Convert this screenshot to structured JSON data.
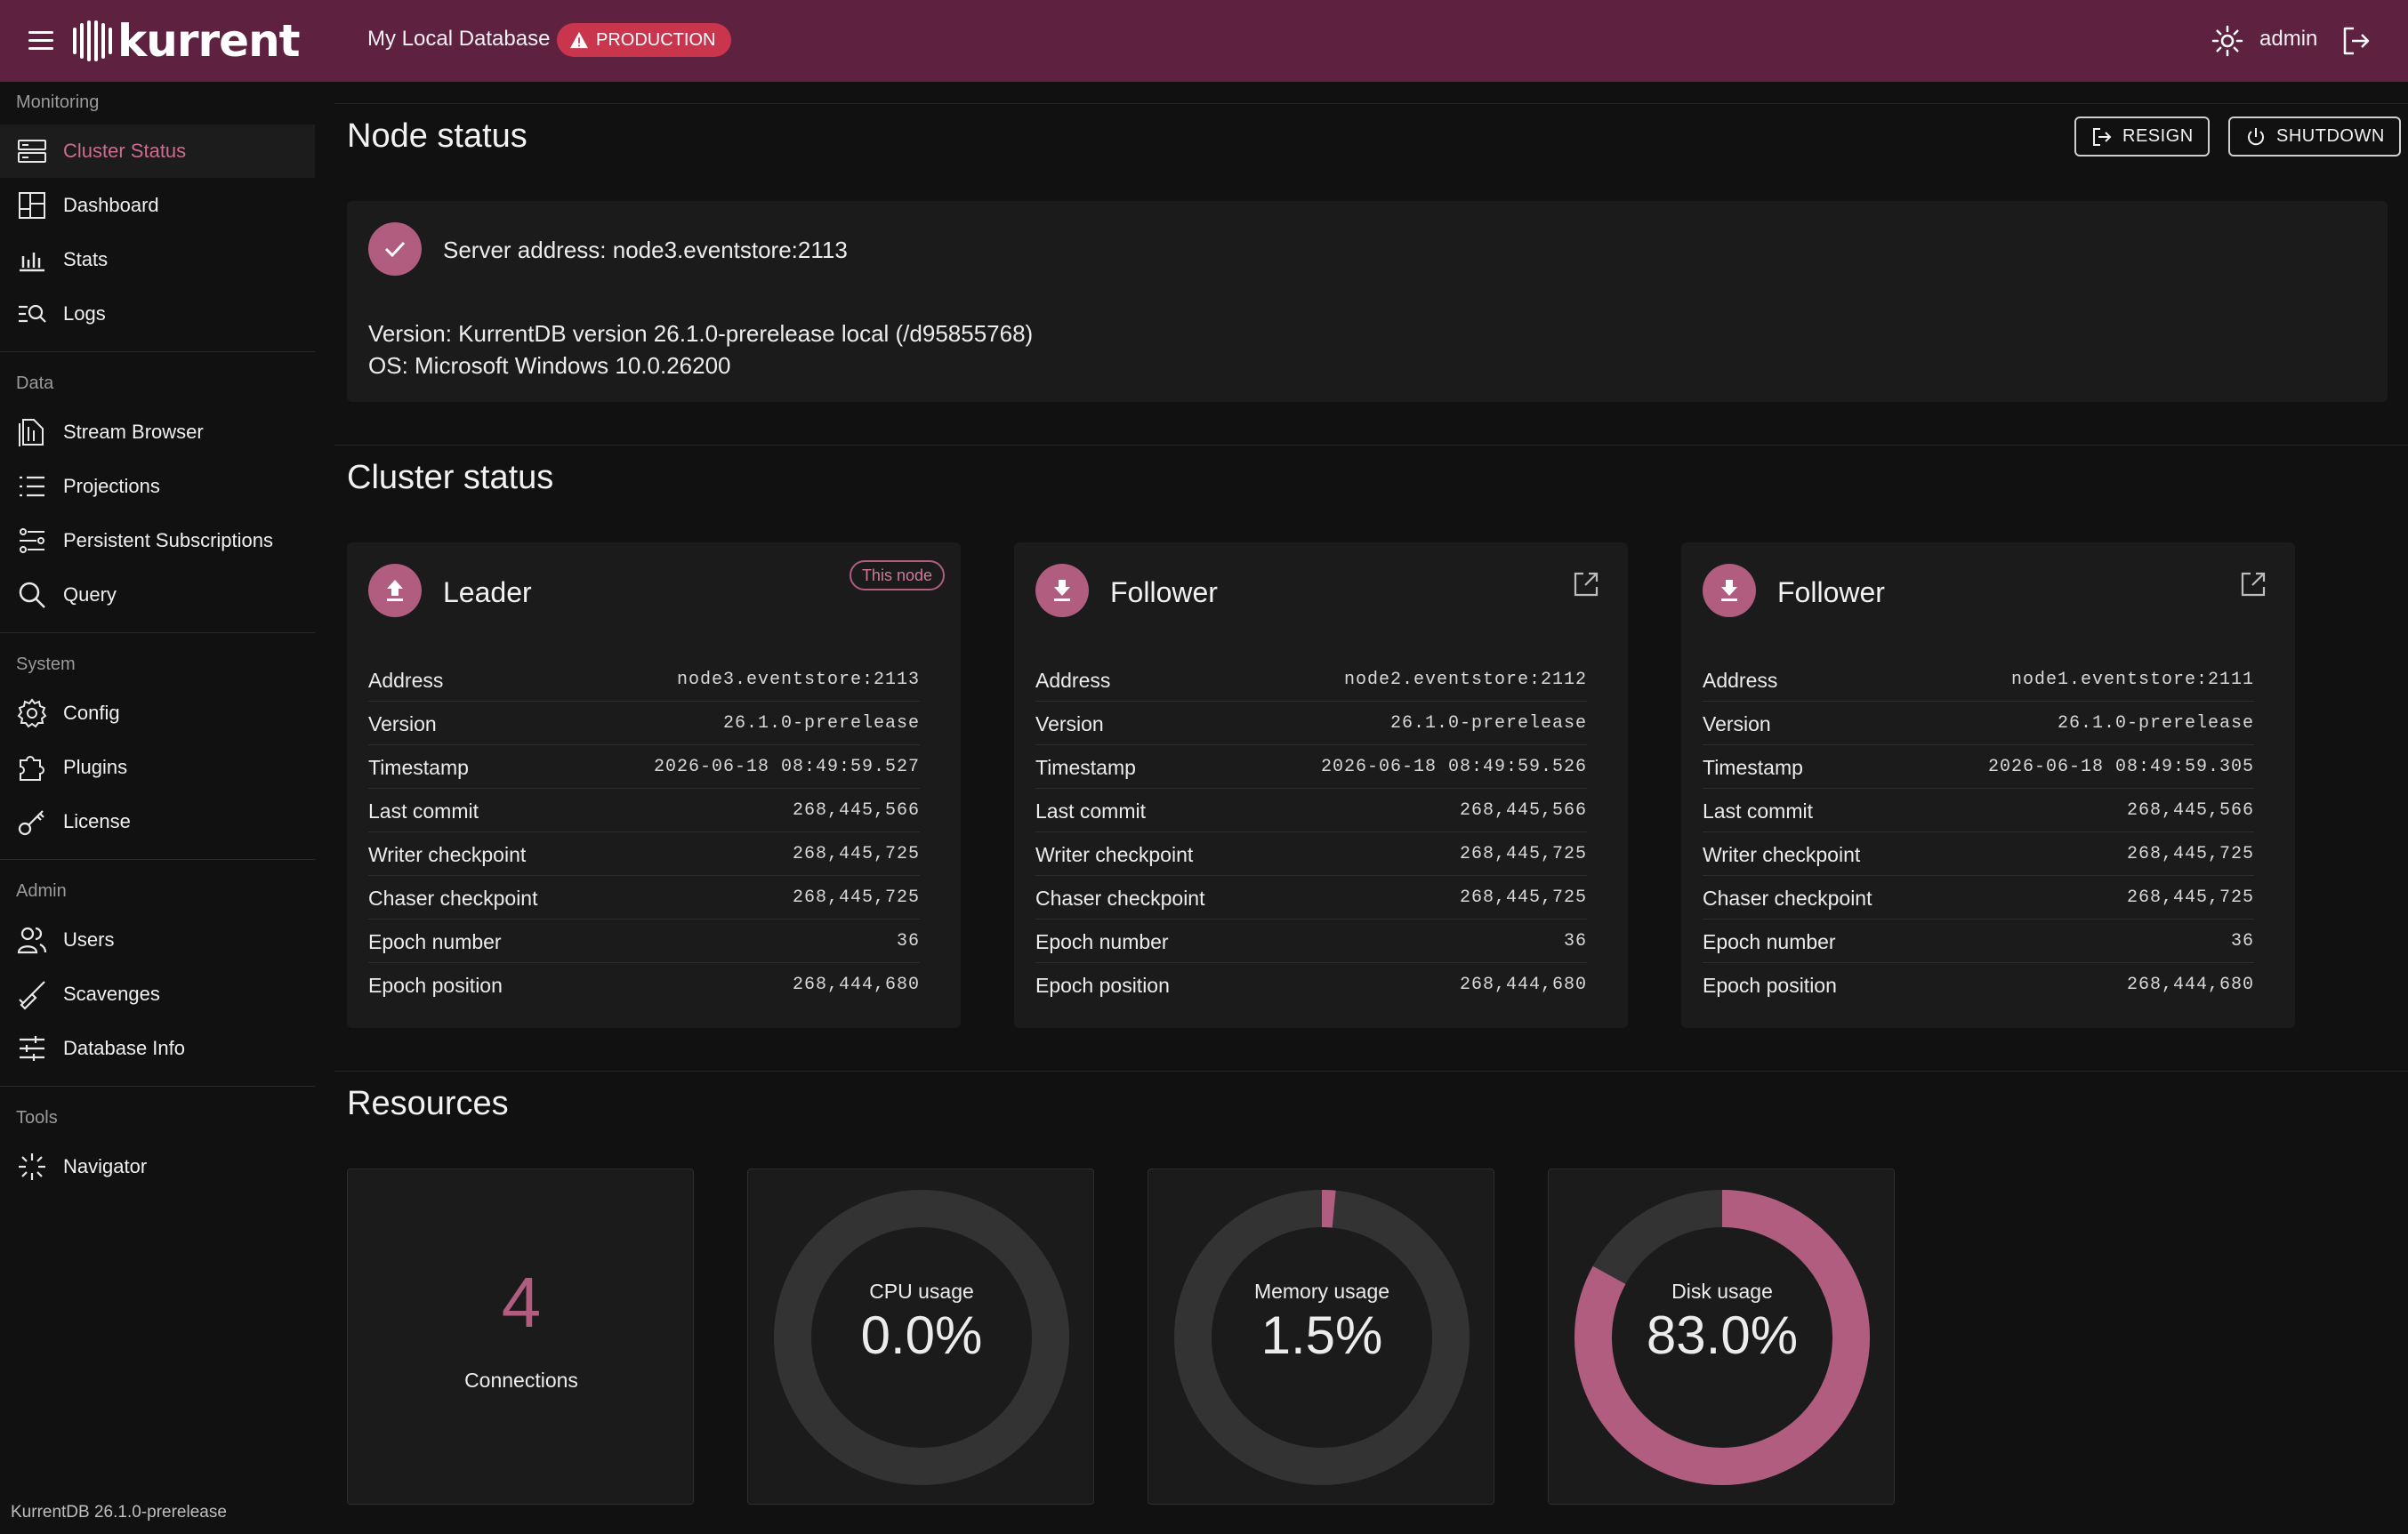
{
  "header": {
    "logo_text": "kurrent",
    "database_name": "My Local Database",
    "environment_badge": "PRODUCTION",
    "user": "admin",
    "brand_color": "#5e2140",
    "badge_color": "#c9354d"
  },
  "sidebar": {
    "groups": [
      {
        "title": "Monitoring",
        "items": [
          {
            "label": "Cluster Status",
            "icon": "server-icon",
            "active": true
          },
          {
            "label": "Dashboard",
            "icon": "dashboard-icon"
          },
          {
            "label": "Stats",
            "icon": "bar-chart-icon"
          },
          {
            "label": "Logs",
            "icon": "logs-search-icon"
          }
        ]
      },
      {
        "title": "Data",
        "items": [
          {
            "label": "Stream Browser",
            "icon": "stream-icon"
          },
          {
            "label": "Projections",
            "icon": "list-icon"
          },
          {
            "label": "Persistent Subscriptions",
            "icon": "subscriptions-icon"
          },
          {
            "label": "Query",
            "icon": "search-icon"
          }
        ]
      },
      {
        "title": "System",
        "items": [
          {
            "label": "Config",
            "icon": "gear-icon"
          },
          {
            "label": "Plugins",
            "icon": "puzzle-icon"
          },
          {
            "label": "License",
            "icon": "key-icon"
          }
        ]
      },
      {
        "title": "Admin",
        "items": [
          {
            "label": "Users",
            "icon": "users-icon"
          },
          {
            "label": "Scavenges",
            "icon": "broom-icon"
          },
          {
            "label": "Database Info",
            "icon": "sliders-icon"
          }
        ]
      },
      {
        "title": "Tools",
        "items": [
          {
            "label": "Navigator",
            "icon": "navigator-icon"
          }
        ]
      }
    ],
    "footer_version": "KurrentDB 26.1.0-prerelease"
  },
  "node_status": {
    "title": "Node status",
    "resign_label": "RESIGN",
    "shutdown_label": "SHUTDOWN",
    "server_address": "Server address: node3.eventstore:2113",
    "version": "Version: KurrentDB version 26.1.0-prerelease local (/d95855768)",
    "os": "OS: Microsoft Windows 10.0.26200"
  },
  "cluster_status": {
    "title": "Cluster status",
    "this_node_label": "This node",
    "field_labels": [
      "Address",
      "Version",
      "Timestamp",
      "Last commit",
      "Writer checkpoint",
      "Chaser checkpoint",
      "Epoch number",
      "Epoch position"
    ],
    "nodes": [
      {
        "role": "Leader",
        "this_node": true,
        "values": [
          "node3.eventstore:2113",
          "26.1.0-prerelease",
          "2026-06-18 08:49:59.527",
          "268,445,566",
          "268,445,725",
          "268,445,725",
          "36",
          "268,444,680"
        ]
      },
      {
        "role": "Follower",
        "this_node": false,
        "values": [
          "node2.eventstore:2112",
          "26.1.0-prerelease",
          "2026-06-18 08:49:59.526",
          "268,445,566",
          "268,445,725",
          "268,445,725",
          "36",
          "268,444,680"
        ]
      },
      {
        "role": "Follower",
        "this_node": false,
        "values": [
          "node1.eventstore:2111",
          "26.1.0-prerelease",
          "2026-06-18 08:49:59.305",
          "268,445,566",
          "268,445,725",
          "268,445,725",
          "36",
          "268,444,680"
        ]
      }
    ]
  },
  "resources": {
    "title": "Resources",
    "connections": {
      "value": "4",
      "label": "Connections"
    },
    "gauges": [
      {
        "label": "CPU usage",
        "value_text": "0.0%",
        "percent": 0.0
      },
      {
        "label": "Memory usage",
        "value_text": "1.5%",
        "percent": 1.5
      },
      {
        "label": "Disk usage",
        "value_text": "83.0%",
        "percent": 83.0
      }
    ],
    "accent_color": "#b05d80",
    "track_color": "#333333"
  }
}
